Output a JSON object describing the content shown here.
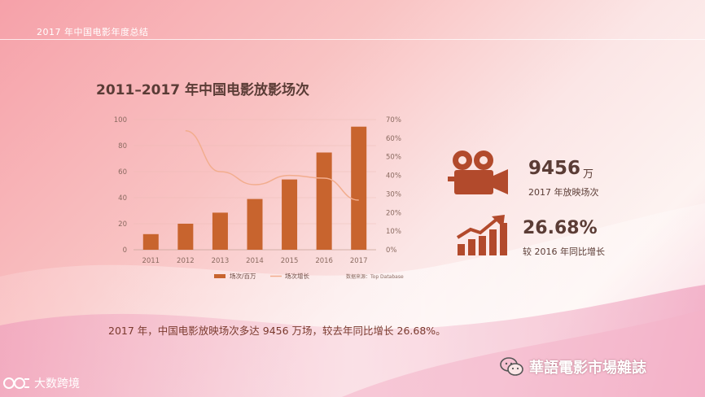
{
  "header": {
    "title": "2017 年中国电影年度总结"
  },
  "colors": {
    "bar": "#c8642e",
    "line": "#f2ad8e",
    "axis_text": "#8a6a60",
    "grid": "#e8b9b0",
    "kpi_icon": "#b24a2c"
  },
  "chart_data": {
    "type": "bar",
    "title": "2011–2017 年中国电影放影场次",
    "categories": [
      "2011",
      "2012",
      "2013",
      "2014",
      "2015",
      "2016",
      "2017"
    ],
    "y_ticks": [
      "0",
      "20",
      "40",
      "60",
      "80",
      "100"
    ],
    "y2_ticks": [
      "0%",
      "10%",
      "20%",
      "30%",
      "40%",
      "50%",
      "60%",
      "70%"
    ],
    "ylim": [
      0,
      100
    ],
    "y2lim": [
      0,
      70
    ],
    "grid": true,
    "legend_position": "bottom",
    "source_note": "数据来源：Top Database",
    "series": [
      {
        "name": "场次/百万",
        "type": "bar",
        "axis": "left",
        "values": [
          12.0,
          20.0,
          28.5,
          39.0,
          54.0,
          74.7,
          94.56
        ]
      },
      {
        "name": "场次增长",
        "type": "line",
        "axis": "right",
        "values": [
          null,
          64.0,
          42.0,
          35.0,
          40.0,
          38.5,
          26.68
        ]
      }
    ]
  },
  "kpis": [
    {
      "icon": "movie-camera-icon",
      "value": "9456",
      "unit": "万",
      "label": "2017 年放映场次"
    },
    {
      "icon": "growth-chart-icon",
      "value": "26.68%",
      "unit": "",
      "label": "较 2016 年同比增长"
    }
  ],
  "summary": "2017 年，中国电影放映场次多达 9456 万场，较去年同比增长 26.68%。",
  "watermarks": {
    "right": {
      "icon": "wechat-icon",
      "text": "華語電影市場雜誌"
    },
    "left": {
      "icon": "logo-icon",
      "text": "大数跨境"
    }
  }
}
